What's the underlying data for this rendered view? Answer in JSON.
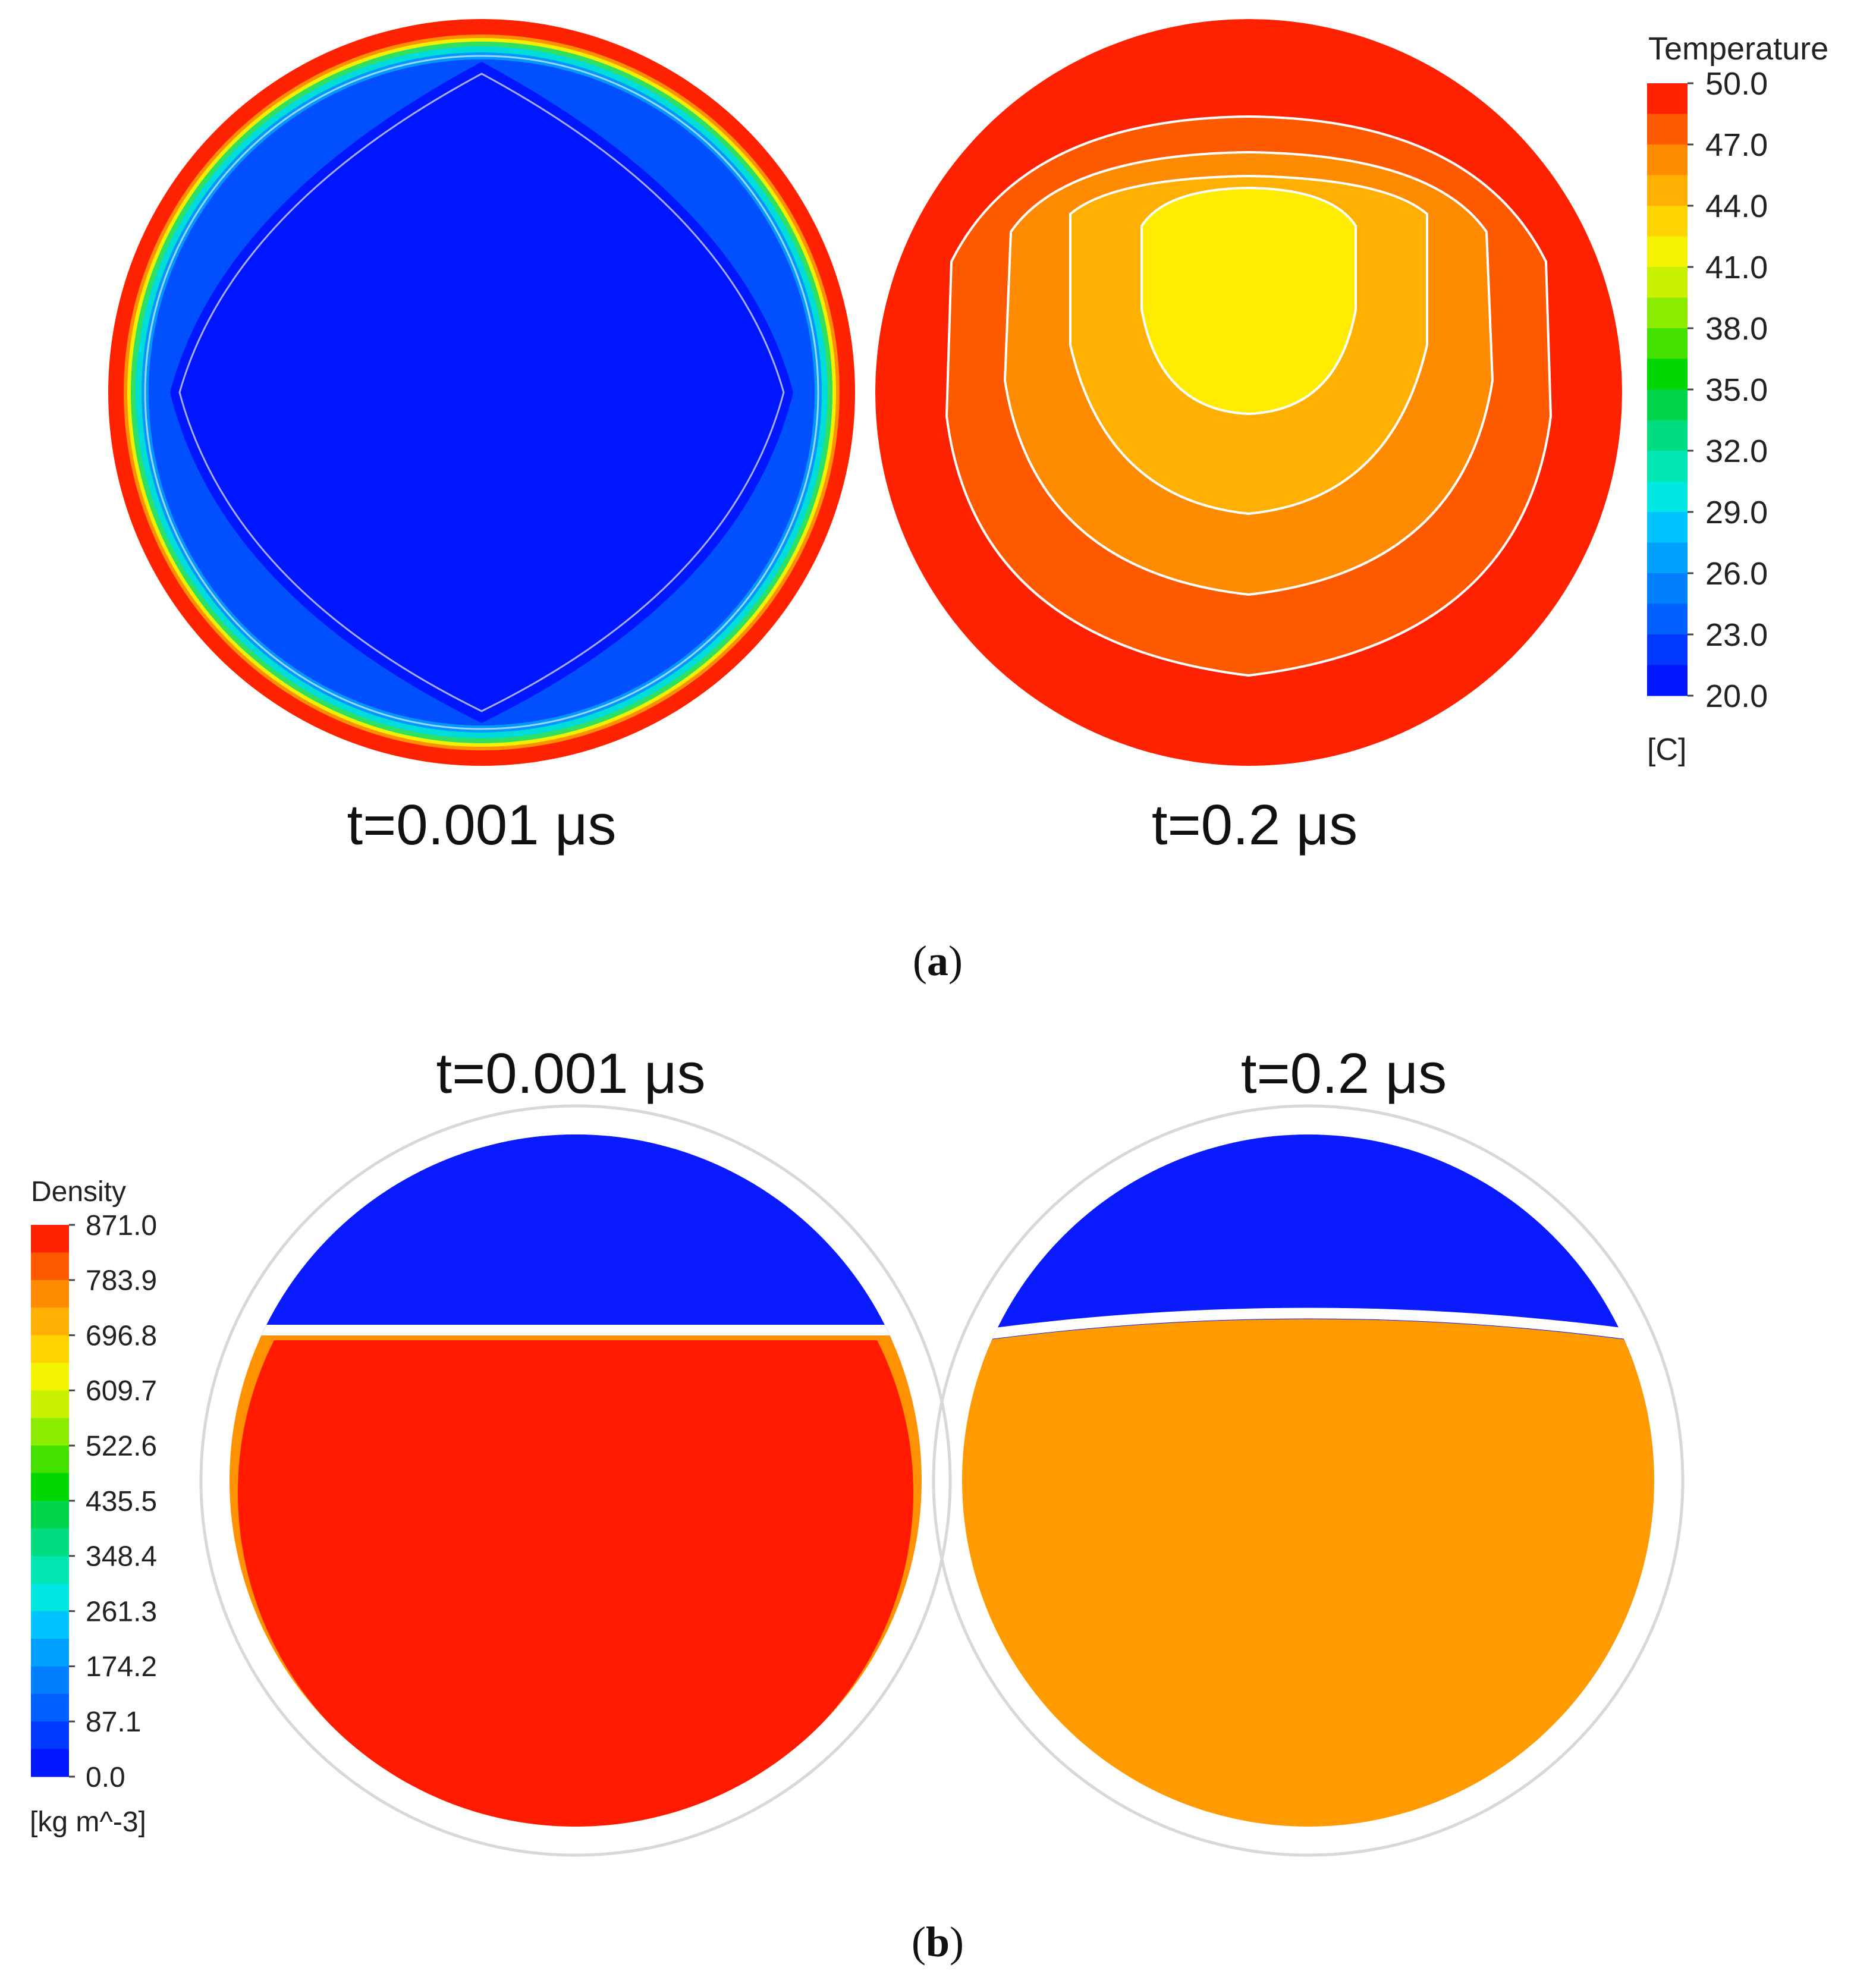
{
  "panel_a": {
    "label_open": "(",
    "label_letter": "a",
    "label_close": ")",
    "plot_left": {
      "time_label": "t=0.001 μs"
    },
    "plot_right": {
      "time_label": "t=0.2 μs"
    },
    "legend": {
      "title": "Temperature",
      "unit": "[C]",
      "ticks": [
        "50.0",
        "47.0",
        "44.0",
        "41.0",
        "38.0",
        "35.0",
        "32.0",
        "29.0",
        "26.0",
        "23.0",
        "20.0"
      ],
      "colors": [
        "#ff2200",
        "#ff5a00",
        "#ff8c00",
        "#ffb000",
        "#ffd400",
        "#f4f400",
        "#c8f000",
        "#8cec00",
        "#44e000",
        "#00d600",
        "#00d44a",
        "#00dc80",
        "#00e6b2",
        "#00e6e0",
        "#00c4ff",
        "#00a0ff",
        "#0080ff",
        "#0060ff",
        "#0038ff",
        "#0016ff"
      ]
    }
  },
  "panel_b": {
    "label_open": "(",
    "label_letter": "b",
    "label_close": ")",
    "plot_left": {
      "time_label": "t=0.001 μs"
    },
    "plot_right": {
      "time_label": "t=0.2 μs"
    },
    "legend": {
      "title": "Density",
      "unit": "[kg m^-3]",
      "ticks": [
        "871.0",
        "783.9",
        "696.8",
        "609.7",
        "522.6",
        "435.5",
        "348.4",
        "261.3",
        "174.2",
        "87.1",
        "0.0"
      ],
      "colors": [
        "#ff2200",
        "#ff5a00",
        "#ff8c00",
        "#ffb000",
        "#ffd400",
        "#f4f400",
        "#c8f000",
        "#8cec00",
        "#44e000",
        "#00d600",
        "#00d44a",
        "#00dc80",
        "#00e6b2",
        "#00e6e0",
        "#00c4ff",
        "#00a0ff",
        "#0080ff",
        "#0060ff",
        "#0038ff",
        "#0016ff"
      ]
    }
  }
}
